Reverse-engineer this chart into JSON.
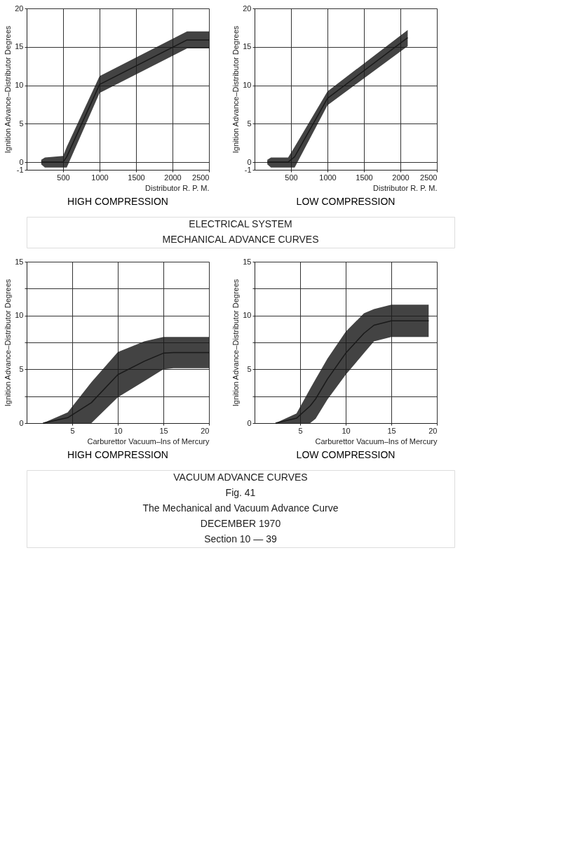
{
  "chart_data": [
    {
      "type": "line",
      "title": "HIGH COMPRESSION",
      "xlabel": "Distributor R. P. M.",
      "ylabel": "Ignition Advance–Distributor Degrees",
      "x": [
        200,
        250,
        500,
        550,
        1000,
        2200,
        2500
      ],
      "series": [
        {
          "color": "#1a1a1a",
          "values": [
            0,
            0,
            0,
            0.7,
            10.1,
            15.9,
            15.9
          ],
          "upper": [
            0.3,
            0.6,
            0.8,
            2.0,
            11.2,
            17.0,
            17.0
          ],
          "lower": [
            -0.3,
            -0.7,
            -0.7,
            -0.7,
            9.0,
            14.8,
            14.8
          ]
        }
      ],
      "xlim": [
        0,
        2500
      ],
      "xticks": [
        500,
        1000,
        1500,
        2000,
        2500
      ],
      "ylim": [
        -1,
        20
      ],
      "yticks": [
        -1,
        0,
        5,
        10,
        15,
        20
      ],
      "grid": true,
      "annotations": [
        "ELECTRICAL SYSTEM",
        "MECHANICAL ADVANCE CURVES"
      ]
    },
    {
      "type": "line",
      "title": "LOW COMPRESSION",
      "xlabel": "Distributor R. P. M.",
      "ylabel": "Ignition Advance–Distributor Degrees",
      "x": [
        175,
        225,
        460,
        550,
        1000,
        2100
      ],
      "series": [
        {
          "color": "#1a1a1a",
          "values": [
            0,
            0,
            0,
            0.7,
            8.3,
            16.2
          ],
          "upper": [
            0.3,
            0.6,
            0.6,
            2.0,
            9.2,
            17.2
          ],
          "lower": [
            -0.3,
            -0.7,
            -0.7,
            -0.7,
            7.4,
            15.1
          ]
        }
      ],
      "xlim": [
        0,
        2500
      ],
      "xticks": [
        500,
        1000,
        1500,
        2000,
        2500
      ],
      "ylim": [
        -1,
        20
      ],
      "yticks": [
        -1,
        0,
        5,
        10,
        15,
        20
      ],
      "grid": true
    },
    {
      "type": "line",
      "title": "HIGH COMPRESSION",
      "xlabel": "Carburettor Vacuum–Ins of Mercury",
      "ylabel": "Ignition Advance–Distributor Degrees",
      "x": [
        1.8,
        4.5,
        7.1,
        10,
        12.9,
        15,
        16.1,
        20
      ],
      "series": [
        {
          "color": "#1a1a1a",
          "values": [
            0,
            0.5,
            1.9,
            4.5,
            5.75,
            6.5,
            6.55,
            6.55
          ],
          "upper": [
            0,
            1.0,
            3.8,
            6.6,
            7.6,
            8.0,
            8.0,
            8.0
          ],
          "lower": [
            0,
            0,
            0,
            2.4,
            3.9,
            5.0,
            5.1,
            5.1
          ]
        }
      ],
      "xlim": [
        0,
        20
      ],
      "xticks": [
        5,
        10,
        15,
        20
      ],
      "ylim": [
        0,
        15
      ],
      "yticks": [
        0,
        {
          "value": 2.5,
          "label": null
        },
        5,
        {
          "value": 7.5,
          "label": null
        },
        10,
        {
          "value": 12.5,
          "label": null
        },
        15
      ],
      "grid": true,
      "annotations": [
        "VACUUM ADVANCE CURVES",
        "Fig. 41",
        "The Mechanical and Vacuum Advance Curve",
        "DECEMBER 1970",
        "Section 10 — 39"
      ]
    },
    {
      "type": "line",
      "title": "LOW COMPRESSION",
      "xlabel": "Carburettor Vacuum–Ins of Mercury",
      "ylabel": "Ignition Advance–Distributor Degrees",
      "x": [
        2.3,
        4.6,
        6.1,
        6.7,
        8.0,
        10,
        12,
        13.1,
        15,
        19.1
      ],
      "series": [
        {
          "color": "#1a1a1a",
          "values": [
            0,
            0.45,
            1.6,
            2.25,
            4.1,
            6.5,
            8.35,
            9.1,
            9.5,
            9.5
          ],
          "upper": [
            0,
            0.9,
            3.2,
            4.1,
            6.0,
            8.5,
            10.2,
            10.6,
            11.0,
            11.0
          ],
          "lower": [
            0,
            0,
            0,
            0.4,
            2.2,
            4.5,
            6.5,
            7.6,
            8.0,
            8.0
          ]
        }
      ],
      "xlim": [
        0,
        20
      ],
      "xticks": [
        5,
        10,
        15,
        20
      ],
      "ylim": [
        0,
        15
      ],
      "yticks": [
        0,
        {
          "value": 2.5,
          "label": null
        },
        5,
        {
          "value": 7.5,
          "label": null
        },
        10,
        {
          "value": 12.5,
          "label": null
        },
        15
      ],
      "grid": true
    }
  ]
}
